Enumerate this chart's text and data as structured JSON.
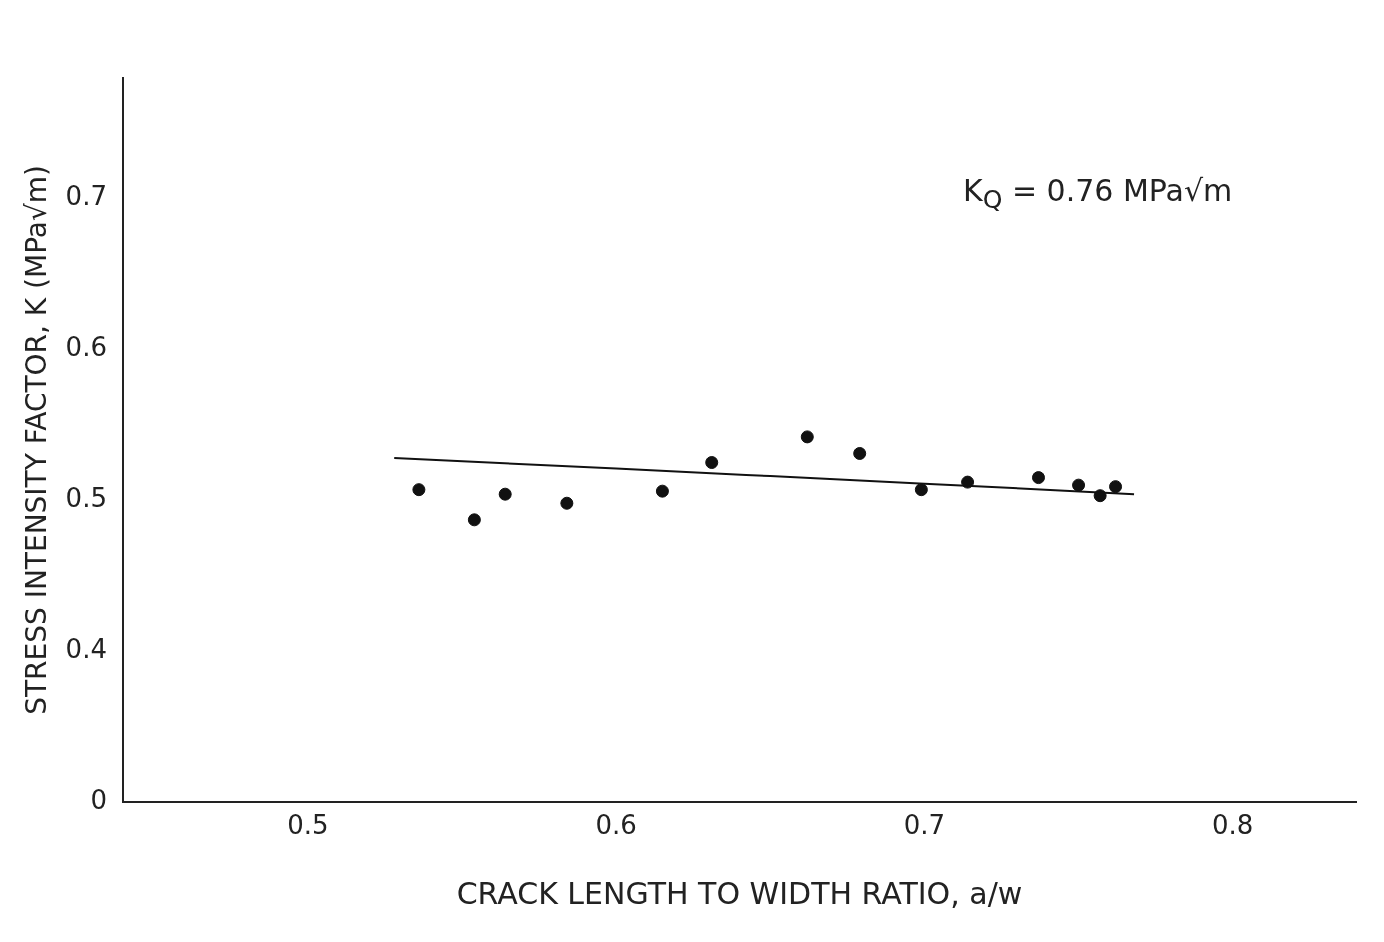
{
  "chart_data": {
    "type": "scatter",
    "xlabel": "CRACK LENGTH TO WIDTH RATIO, a/w",
    "ylabel": "STRESS INTENSITY FACTOR, K (MPa√m)",
    "annotations": [
      "K$_{Q}$ = 0.76 MPa√m"
    ],
    "xlim": [
      0.44,
      0.84
    ],
    "xticks": [
      0.5,
      0.6,
      0.7,
      0.8
    ],
    "ylim": [
      0.3,
      0.78
    ],
    "yticks": [
      {
        "value": 0.3,
        "label": "0"
      },
      0.4,
      0.5,
      0.6,
      0.7
    ],
    "series": [
      {
        "marker": "circle",
        "color": "#111111",
        "x": [
          0.536,
          0.554,
          0.564,
          0.584,
          0.615,
          0.631,
          0.662,
          0.679,
          0.699,
          0.714,
          0.737,
          0.75,
          0.757,
          0.762
        ],
        "values": [
          0.507,
          0.487,
          0.504,
          0.498,
          0.506,
          0.525,
          0.542,
          0.531,
          0.507,
          0.512,
          0.515,
          0.51,
          0.503,
          0.509
        ]
      },
      {
        "type": "line",
        "marker": "none",
        "color": "#111111",
        "x": [
          0.528,
          0.6,
          0.65,
          0.7,
          0.768
        ],
        "values": [
          0.528,
          0.521,
          0.516,
          0.511,
          0.504
        ]
      }
    ]
  }
}
